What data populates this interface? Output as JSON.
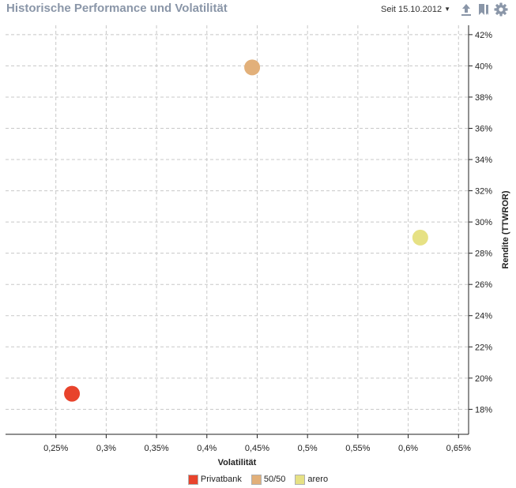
{
  "header": {
    "title": "Historische Performance und Volatilität",
    "date_label": "Seit 15.10.2012",
    "icons": [
      "export-icon",
      "bookmark-icon",
      "gear-icon"
    ]
  },
  "chart_data": {
    "type": "scatter",
    "title": "Historische Performance und Volatilität",
    "xlabel": "Volatilität",
    "ylabel": "Rendite (TTWROR)",
    "xlim": [
      0.2,
      0.66
    ],
    "ylim": [
      16.4,
      42.6
    ],
    "x_ticks": [
      0.25,
      0.3,
      0.35,
      0.4,
      0.45,
      0.5,
      0.55,
      0.6,
      0.65
    ],
    "x_tick_labels": [
      "0,25%",
      "0,3%",
      "0,35%",
      "0,4%",
      "0,45%",
      "0,5%",
      "0,55%",
      "0,6%",
      "0,65%"
    ],
    "y_ticks": [
      18,
      20,
      22,
      24,
      26,
      28,
      30,
      32,
      34,
      36,
      38,
      40,
      42
    ],
    "y_tick_labels": [
      "18%",
      "20%",
      "22%",
      "24%",
      "26%",
      "28%",
      "30%",
      "32%",
      "34%",
      "36%",
      "38%",
      "40%",
      "42%"
    ],
    "grid": true,
    "legend_position": "bottom",
    "series": [
      {
        "name": "Privatbank",
        "x": 0.266,
        "y": 19.0,
        "color": "#e8432c"
      },
      {
        "name": "50/50",
        "x": 0.445,
        "y": 39.9,
        "color": "#e2b07a"
      },
      {
        "name": "arero",
        "x": 0.612,
        "y": 29.0,
        "color": "#e6e184"
      }
    ]
  }
}
